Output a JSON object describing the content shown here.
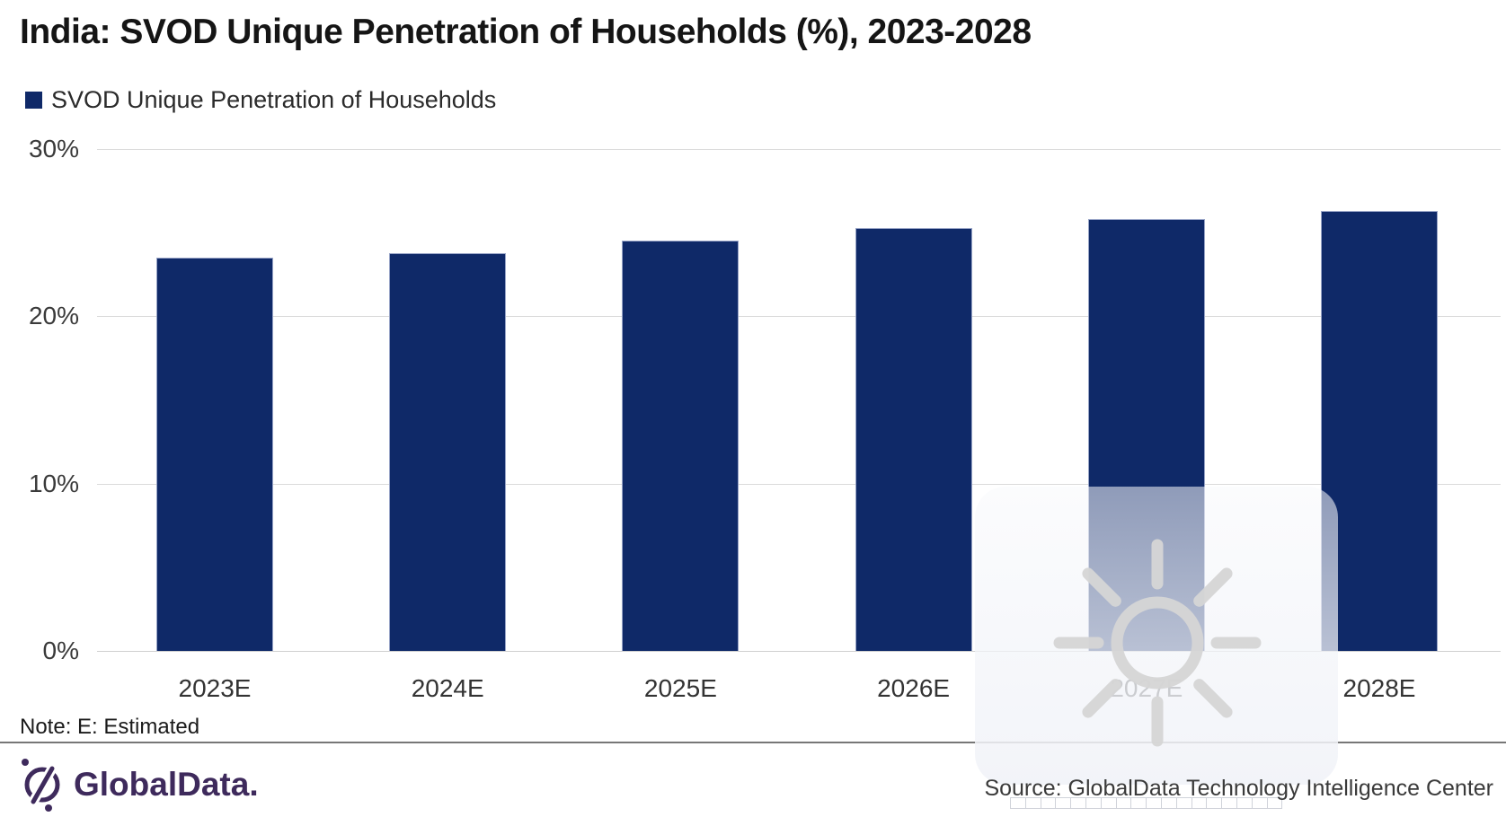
{
  "title": "India: SVOD Unique Penetration of Households (%), 2023-2028",
  "legend": {
    "label": "SVOD Unique Penetration of Households",
    "swatch_color": "#0F2968"
  },
  "chart_data": {
    "type": "bar",
    "title": "India: SVOD Unique Penetration of Households (%), 2023-2028",
    "categories": [
      "2023E",
      "2024E",
      "2025E",
      "2026E",
      "2027E",
      "2028E"
    ],
    "series": [
      {
        "name": "SVOD Unique Penetration of Households",
        "values": [
          23.5,
          23.8,
          24.5,
          25.3,
          25.8,
          26.3
        ]
      }
    ],
    "xlabel": "",
    "ylabel": "",
    "ylim": [
      0,
      30
    ],
    "yticks": [
      {
        "value": 0,
        "label": "0%"
      },
      {
        "value": 10,
        "label": "10%"
      },
      {
        "value": 20,
        "label": "20%"
      },
      {
        "value": 30,
        "label": "30%"
      }
    ],
    "grid": true,
    "legend_position": "top-left",
    "bar_color": "#0F2968"
  },
  "note": "Note: E: Estimated",
  "footer": {
    "logo_text": "GlobalData.",
    "source": "Source: GlobalData Technology Intelligence Center"
  },
  "colors": {
    "bar": "#0F2968",
    "gridline": "#DBDBDB",
    "title_text": "#151515",
    "axis_text": "#3a3a3a",
    "logo_purple": "#3E2A5C",
    "watermark_gray": "#D6D6D6"
  }
}
